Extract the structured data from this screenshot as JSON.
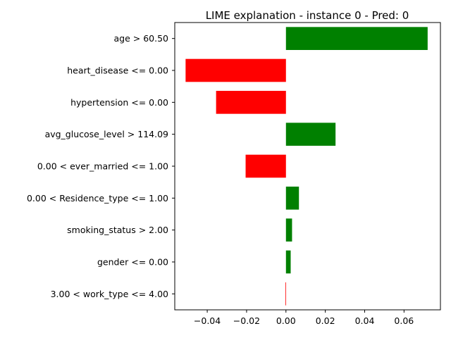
{
  "chart_data": {
    "type": "bar",
    "orientation": "horizontal",
    "title": "LIME explanation - instance 0 - Pred: 0",
    "xlabel": "",
    "ylabel": "",
    "xlim": [
      -0.0565,
      0.0785
    ],
    "xticks": [
      -0.04,
      -0.02,
      0.0,
      0.02,
      0.04,
      0.06
    ],
    "xtick_labels": [
      "−0.04",
      "−0.02",
      "0.00",
      "0.02",
      "0.04",
      "0.06"
    ],
    "grid": false,
    "colors": {
      "positive": "#008000",
      "negative": "#ff0000"
    },
    "categories": [
      "age > 60.50",
      "heart_disease <= 0.00",
      "hypertension <= 0.00",
      "avg_glucose_level > 114.09",
      "0.00 < ever_married <= 1.00",
      "0.00 < Residence_type <= 1.00",
      "smoking_status > 2.00",
      "gender <= 0.00",
      "3.00 < work_type <= 4.00"
    ],
    "values": [
      0.072,
      -0.051,
      -0.0355,
      0.0252,
      -0.0205,
      0.0066,
      0.0031,
      0.0024,
      -0.0003
    ]
  }
}
